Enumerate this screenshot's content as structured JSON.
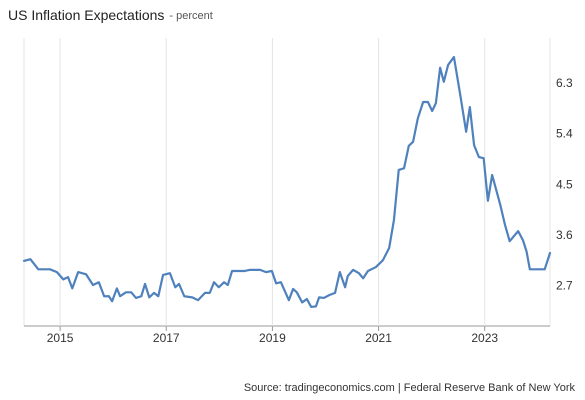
{
  "chart_data": {
    "type": "line",
    "title": "US Inflation Expectations",
    "subtitle": "- percent",
    "source": "Source: tradingeconomics.com | Federal Reserve Bank of New York",
    "x": [
      2014.32,
      2014.44,
      2014.59,
      2014.81,
      2014.94,
      2015.06,
      2015.15,
      2015.23,
      2015.34,
      2015.49,
      2015.62,
      2015.73,
      2015.83,
      2015.92,
      2015.98,
      2016.07,
      2016.13,
      2016.24,
      2016.34,
      2016.43,
      2016.53,
      2016.6,
      2016.68,
      2016.77,
      2016.85,
      2016.94,
      2017.07,
      2017.17,
      2017.24,
      2017.34,
      2017.49,
      2017.6,
      2017.73,
      2017.82,
      2017.9,
      2017.99,
      2018.09,
      2018.16,
      2018.24,
      2018.48,
      2018.58,
      2018.77,
      2018.88,
      2018.99,
      2019.07,
      2019.16,
      2019.31,
      2019.39,
      2019.46,
      2019.56,
      2019.65,
      2019.73,
      2019.82,
      2019.88,
      2019.97,
      2020.07,
      2020.18,
      2020.27,
      2020.37,
      2020.42,
      2020.52,
      2020.63,
      2020.71,
      2020.8,
      2020.95,
      2021.08,
      2021.2,
      2021.29,
      2021.38,
      2021.48,
      2021.57,
      2021.65,
      2021.74,
      2021.84,
      2021.93,
      2022.01,
      2022.08,
      2022.16,
      2022.23,
      2022.31,
      2022.42,
      2022.53,
      2022.65,
      2022.72,
      2022.8,
      2022.89,
      2022.98,
      2023.06,
      2023.14,
      2023.29,
      2023.38,
      2023.47,
      2023.63,
      2023.72,
      2023.79,
      2023.85,
      2024.13,
      2024.23
    ],
    "series": [
      {
        "name": "US Inflation Expectations",
        "color": "#4f81bd",
        "values": [
          3.15,
          3.18,
          3.0,
          3.0,
          2.95,
          2.82,
          2.86,
          2.66,
          2.95,
          2.91,
          2.72,
          2.77,
          2.52,
          2.52,
          2.43,
          2.66,
          2.52,
          2.59,
          2.59,
          2.49,
          2.52,
          2.74,
          2.5,
          2.58,
          2.52,
          2.9,
          2.93,
          2.68,
          2.74,
          2.52,
          2.5,
          2.45,
          2.58,
          2.58,
          2.77,
          2.68,
          2.77,
          2.72,
          2.97,
          2.97,
          2.99,
          2.99,
          2.95,
          2.97,
          2.75,
          2.77,
          2.45,
          2.65,
          2.59,
          2.41,
          2.47,
          2.33,
          2.34,
          2.5,
          2.49,
          2.54,
          2.58,
          2.95,
          2.68,
          2.88,
          2.99,
          2.93,
          2.84,
          2.97,
          3.04,
          3.16,
          3.38,
          3.88,
          4.77,
          4.8,
          5.2,
          5.27,
          5.69,
          5.98,
          5.98,
          5.82,
          5.96,
          6.59,
          6.34,
          6.64,
          6.78,
          6.16,
          5.45,
          5.89,
          5.21,
          5.0,
          4.98,
          4.22,
          4.68,
          4.16,
          3.8,
          3.5,
          3.68,
          3.52,
          3.31,
          3.0,
          3.0,
          3.29
        ]
      }
    ],
    "xlim": [
      2014.32,
      2024.23
    ],
    "xticks": [
      2015,
      2017,
      2019,
      2021,
      2023
    ],
    "ylim": [
      1.99,
      7.12
    ],
    "yticks": [
      2.7,
      3.6,
      4.5,
      5.4,
      6.3
    ],
    "grid": true
  }
}
